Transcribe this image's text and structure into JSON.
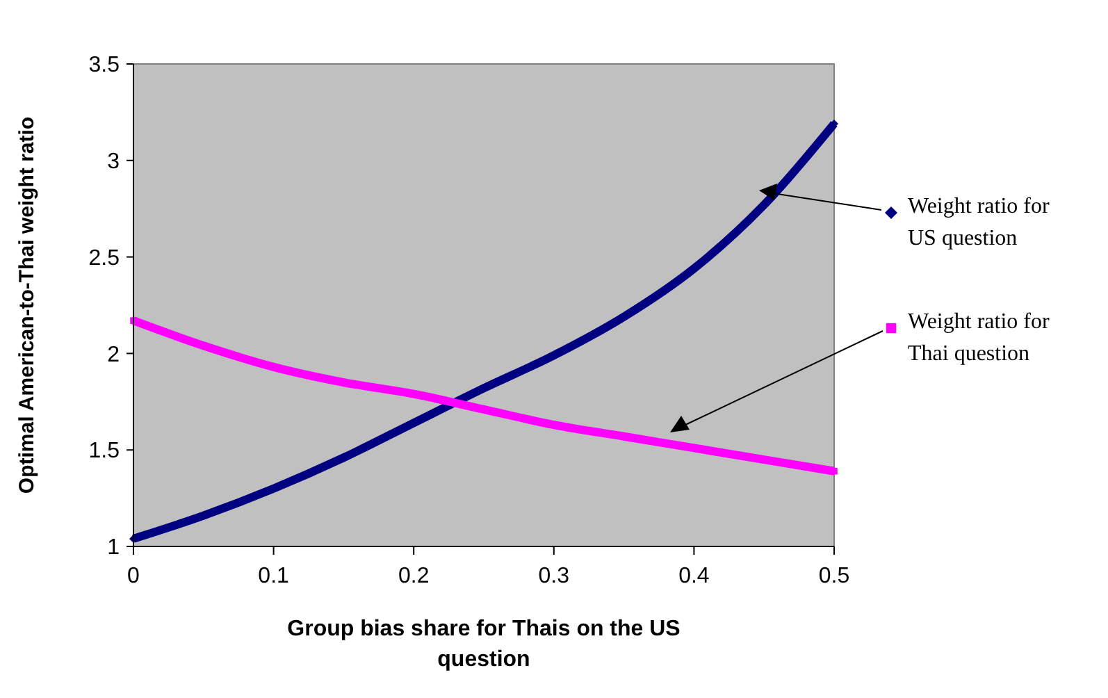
{
  "chart_data": {
    "type": "line",
    "xlabel": "Group bias share for Thais on the US question",
    "ylabel": "Optimal American-to-Thai weight ratio",
    "x": [
      0,
      0.05,
      0.1,
      0.15,
      0.2,
      0.25,
      0.3,
      0.35,
      0.4,
      0.45,
      0.5
    ],
    "series": [
      {
        "name": "Weight ratio for US question",
        "color": "#000080",
        "marker": "diamond",
        "values": [
          1.04,
          1.16,
          1.3,
          1.46,
          1.64,
          1.82,
          1.99,
          2.19,
          2.44,
          2.77,
          3.19
        ]
      },
      {
        "name": "Weight ratio for Thai question",
        "color": "#ff00ff",
        "marker": "square",
        "values": [
          2.17,
          2.04,
          1.93,
          1.85,
          1.79,
          1.71,
          1.63,
          1.57,
          1.51,
          1.45,
          1.39
        ]
      }
    ],
    "xlim": [
      0,
      0.5
    ],
    "xticks": [
      0,
      0.1,
      0.2,
      0.3,
      0.4,
      0.5
    ],
    "ylim": [
      1,
      3.5
    ],
    "yticks": [
      1,
      1.5,
      2,
      2.5,
      3,
      3.5
    ],
    "grid": false,
    "legend": "right"
  }
}
